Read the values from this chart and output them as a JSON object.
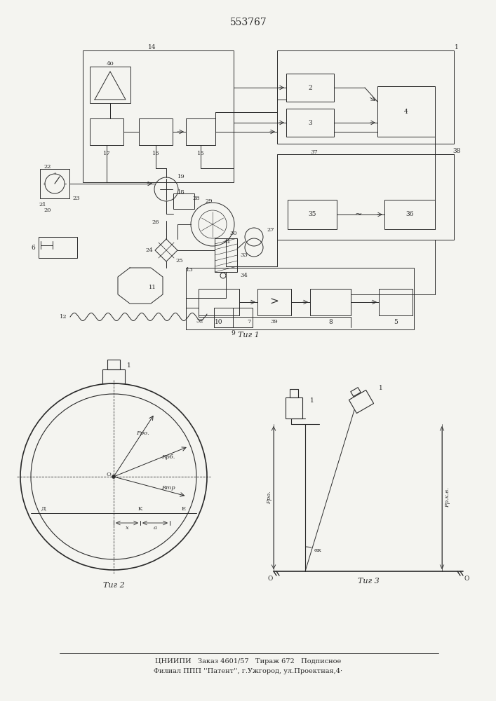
{
  "title": "553767",
  "bg_color": "#f4f4f0",
  "line_color": "#2a2a2a",
  "footer_line1": "ЦНИИПИ   Заказ 4601/57   Тираж 672   Подписное",
  "footer_line2": "Филиал ППП ''Патент'', г.Ужгород, ул.Проектная,4·",
  "fig1_caption": "Τиг 1",
  "fig2_caption": "Τиг 2",
  "fig3_caption": "Τиг 3"
}
